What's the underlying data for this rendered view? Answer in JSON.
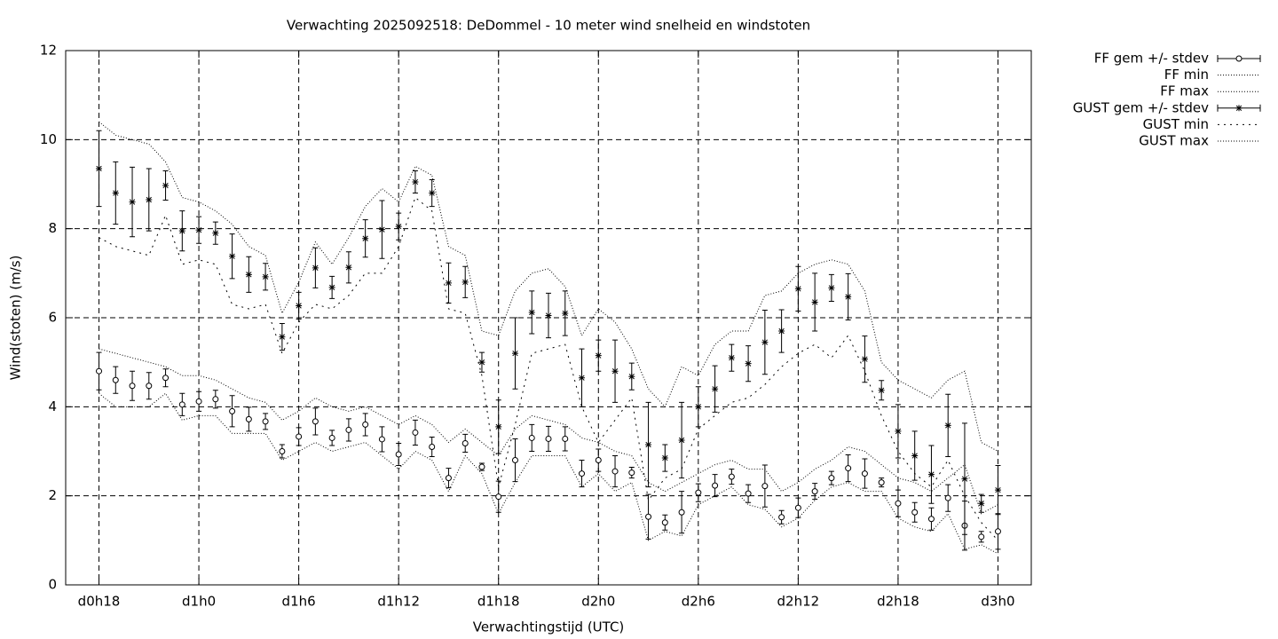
{
  "chart_data": {
    "type": "errorbar",
    "title": "Verwachting 2025092518: DeDommel - 10 meter wind snelheid en windstoten",
    "x_label": "Verwachtingstijd (UTC)",
    "y_label": "Wind(stoten) (m/s)",
    "xlim": [
      16,
      74
    ],
    "ylim": [
      0,
      12
    ],
    "xticks": [
      {
        "value": 18,
        "label": "d0h18"
      },
      {
        "value": 24,
        "label": "d1h0"
      },
      {
        "value": 30,
        "label": "d1h6"
      },
      {
        "value": 36,
        "label": "d1h12"
      },
      {
        "value": 42,
        "label": "d1h18"
      },
      {
        "value": 48,
        "label": "d2h0"
      },
      {
        "value": 54,
        "label": "d2h6"
      },
      {
        "value": 60,
        "label": "d2h12"
      },
      {
        "value": 66,
        "label": "d2h18"
      },
      {
        "value": 72,
        "label": "d3h0"
      }
    ],
    "yticks": [
      0,
      2,
      4,
      6,
      8,
      10,
      12
    ],
    "grid": true,
    "legend_position": "outside-right",
    "x": [
      18,
      19,
      20,
      21,
      22,
      23,
      24,
      25,
      26,
      27,
      28,
      29,
      30,
      31,
      32,
      33,
      34,
      35,
      36,
      37,
      38,
      39,
      40,
      41,
      42,
      43,
      44,
      45,
      46,
      47,
      48,
      49,
      50,
      51,
      52,
      53,
      54,
      55,
      56,
      57,
      58,
      59,
      60,
      61,
      62,
      63,
      64,
      65,
      66,
      67,
      68,
      69,
      70,
      71,
      72
    ],
    "series": [
      {
        "name": "FF gem +/- stdev",
        "color": "#000000",
        "style": "errorbar",
        "marker": "circle",
        "values": [
          4.8,
          4.6,
          4.47,
          4.47,
          4.65,
          4.05,
          4.12,
          4.17,
          3.9,
          3.72,
          3.67,
          3.0,
          3.33,
          3.67,
          3.3,
          3.48,
          3.6,
          3.27,
          2.93,
          3.42,
          3.1,
          2.4,
          3.18,
          2.65,
          1.98,
          2.8,
          3.3,
          3.28,
          3.28,
          2.5,
          2.8,
          2.55,
          2.52,
          1.53,
          1.4,
          1.63,
          2.07,
          2.23,
          2.43,
          2.05,
          2.22,
          1.52,
          1.73,
          2.1,
          2.4,
          2.62,
          2.5,
          2.3,
          1.83,
          1.63,
          1.48,
          1.95,
          1.33,
          1.08,
          1.2
        ],
        "errors": [
          0.42,
          0.3,
          0.33,
          0.3,
          0.2,
          0.25,
          0.22,
          0.2,
          0.35,
          0.27,
          0.18,
          0.15,
          0.2,
          0.3,
          0.17,
          0.25,
          0.25,
          0.28,
          0.25,
          0.28,
          0.22,
          0.22,
          0.2,
          0.08,
          0.35,
          0.48,
          0.3,
          0.28,
          0.27,
          0.3,
          0.25,
          0.35,
          0.12,
          0.5,
          0.17,
          0.47,
          0.2,
          0.25,
          0.17,
          0.2,
          0.47,
          0.15,
          0.22,
          0.18,
          0.15,
          0.3,
          0.33,
          0.1,
          0.3,
          0.22,
          0.25,
          0.3,
          0.55,
          0.12,
          0.4
        ]
      },
      {
        "name": "FF min",
        "color": "#000000",
        "style": "dotted",
        "dash": "1 2",
        "values": [
          4.3,
          4.0,
          4.0,
          4.0,
          4.3,
          3.7,
          3.8,
          3.8,
          3.4,
          3.4,
          3.4,
          2.8,
          3.0,
          3.2,
          3.0,
          3.1,
          3.2,
          2.9,
          2.6,
          3.0,
          2.8,
          2.1,
          2.9,
          2.5,
          1.6,
          2.3,
          2.9,
          2.9,
          2.9,
          2.2,
          2.5,
          2.1,
          2.3,
          1.0,
          1.2,
          1.1,
          1.8,
          2.0,
          2.2,
          1.8,
          1.7,
          1.3,
          1.5,
          1.9,
          2.2,
          2.3,
          2.1,
          2.1,
          1.5,
          1.3,
          1.2,
          1.6,
          0.8,
          0.9,
          0.7
        ]
      },
      {
        "name": "FF max",
        "color": "#000000",
        "style": "dotted",
        "dash": "1 2",
        "values": [
          5.3,
          5.2,
          5.1,
          5.0,
          4.9,
          4.7,
          4.7,
          4.6,
          4.4,
          4.2,
          4.1,
          3.7,
          3.9,
          4.2,
          4.0,
          3.9,
          4.0,
          3.8,
          3.6,
          3.8,
          3.6,
          3.2,
          3.5,
          3.2,
          2.9,
          3.5,
          3.8,
          3.7,
          3.6,
          3.3,
          3.2,
          3.0,
          2.9,
          2.3,
          2.1,
          2.3,
          2.5,
          2.7,
          2.8,
          2.6,
          2.6,
          2.1,
          2.3,
          2.6,
          2.8,
          3.1,
          3.0,
          2.7,
          2.4,
          2.3,
          2.1,
          2.4,
          2.7,
          1.6,
          1.8
        ]
      },
      {
        "name": "GUST gem +/- stdev",
        "color": "#000000",
        "style": "errorbar",
        "marker": "star",
        "values": [
          9.35,
          8.8,
          8.6,
          8.65,
          8.97,
          7.95,
          7.97,
          7.9,
          7.38,
          6.97,
          6.92,
          5.57,
          6.27,
          7.12,
          6.68,
          7.13,
          7.78,
          7.98,
          8.05,
          9.05,
          8.8,
          6.78,
          6.8,
          5.0,
          3.55,
          5.2,
          6.12,
          6.05,
          6.1,
          4.65,
          5.15,
          4.8,
          4.68,
          3.15,
          2.85,
          3.25,
          4.0,
          4.4,
          5.1,
          4.97,
          5.45,
          5.7,
          6.65,
          6.35,
          6.67,
          6.47,
          5.07,
          4.37,
          3.45,
          2.9,
          2.48,
          3.58,
          2.38,
          1.83,
          2.13
        ],
        "errors": [
          0.85,
          0.7,
          0.78,
          0.7,
          0.33,
          0.45,
          0.3,
          0.25,
          0.5,
          0.4,
          0.3,
          0.3,
          0.3,
          0.45,
          0.25,
          0.35,
          0.42,
          0.65,
          0.3,
          0.25,
          0.3,
          0.45,
          0.35,
          0.22,
          0.6,
          0.8,
          0.48,
          0.5,
          0.5,
          0.65,
          0.35,
          0.7,
          0.3,
          0.95,
          0.3,
          0.85,
          0.45,
          0.52,
          0.3,
          0.4,
          0.72,
          0.48,
          0.5,
          0.65,
          0.3,
          0.52,
          0.52,
          0.22,
          0.6,
          0.55,
          0.65,
          0.7,
          1.25,
          0.2,
          0.55
        ]
      },
      {
        "name": "GUST min",
        "color": "#000000",
        "style": "dotted",
        "dash": "2 5",
        "values": [
          7.8,
          7.6,
          7.5,
          7.4,
          8.3,
          7.2,
          7.3,
          7.2,
          6.3,
          6.2,
          6.3,
          5.2,
          5.9,
          6.3,
          6.2,
          6.5,
          7.0,
          7.0,
          7.6,
          8.7,
          8.4,
          6.2,
          6.1,
          4.7,
          2.2,
          3.6,
          5.2,
          5.3,
          5.4,
          4.0,
          3.2,
          3.7,
          4.2,
          1.9,
          2.4,
          2.6,
          3.5,
          3.8,
          4.1,
          4.2,
          4.5,
          4.9,
          5.2,
          5.4,
          5.1,
          5.6,
          4.8,
          3.8,
          3.0,
          2.5,
          2.2,
          2.8,
          2.0,
          1.4,
          1.0
        ]
      },
      {
        "name": "GUST max",
        "color": "#000000",
        "style": "dotted",
        "dash": "1 2",
        "values": [
          10.4,
          10.1,
          10.0,
          9.9,
          9.5,
          8.7,
          8.6,
          8.4,
          8.1,
          7.6,
          7.4,
          6.1,
          6.8,
          7.7,
          7.2,
          7.8,
          8.5,
          8.9,
          8.6,
          9.4,
          9.2,
          7.6,
          7.4,
          5.7,
          5.6,
          6.6,
          7.0,
          7.1,
          6.7,
          5.6,
          6.2,
          5.9,
          5.3,
          4.4,
          4.0,
          4.9,
          4.7,
          5.4,
          5.7,
          5.7,
          6.5,
          6.6,
          7.0,
          7.2,
          7.3,
          7.2,
          6.6,
          5.0,
          4.6,
          4.4,
          4.2,
          4.6,
          4.8,
          3.2,
          3.0
        ]
      }
    ]
  }
}
